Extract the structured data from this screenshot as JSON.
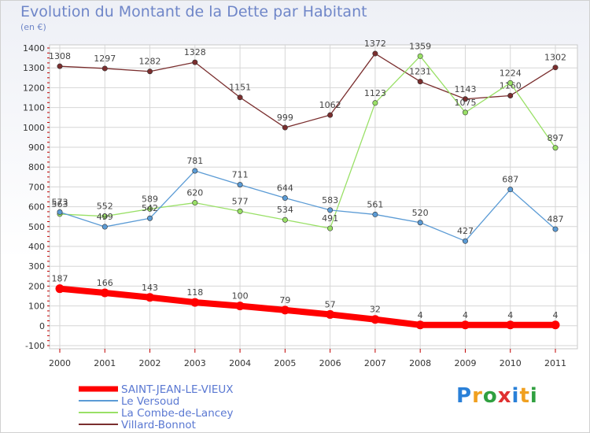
{
  "chart_data": {
    "type": "line",
    "title": "Evolution du Montant de la Dette par Habitant",
    "subtitle": "(en €)",
    "x": [
      "2000",
      "2001",
      "2002",
      "2003",
      "2004",
      "2005",
      "2006",
      "2007",
      "2008",
      "2009",
      "2010",
      "2011"
    ],
    "ylim": [
      -100,
      1400
    ],
    "yticks": [
      -100,
      0,
      100,
      200,
      300,
      400,
      500,
      600,
      700,
      800,
      900,
      1000,
      1100,
      1200,
      1300,
      1400
    ],
    "grid": true,
    "legend_position": "bottom-left",
    "series": [
      {
        "name": "SAINT-JEAN-LE-VIEUX",
        "color": "#ff0000",
        "width": 8,
        "values": [
          187,
          166,
          143,
          118,
          100,
          79,
          57,
          32,
          4,
          4,
          4,
          4
        ]
      },
      {
        "name": "Le Versoud",
        "color": "#5b9bd5",
        "width": 1.3,
        "values": [
          573,
          499,
          542,
          781,
          711,
          644,
          583,
          561,
          520,
          427,
          687,
          487
        ]
      },
      {
        "name": "La Combe-de-Lancey",
        "color": "#99e066",
        "width": 1.3,
        "values": [
          563,
          552,
          589,
          620,
          577,
          534,
          491,
          1123,
          1359,
          1075,
          1224,
          897
        ]
      },
      {
        "name": "Villard-Bonnot",
        "color": "#7a2e2e",
        "width": 1.3,
        "values": [
          1308,
          1297,
          1282,
          1328,
          1151,
          999,
          1062,
          1372,
          1231,
          1143,
          1160,
          1302
        ]
      }
    ]
  },
  "logo": {
    "text": "Proxiti",
    "letters": [
      "P",
      "r",
      "o",
      "x",
      "i",
      "t",
      "i"
    ],
    "colors": [
      "#2a80d8",
      "#f0a020",
      "#30a040",
      "#e03030",
      "#2a80d8",
      "#f0a020",
      "#30a040"
    ]
  }
}
